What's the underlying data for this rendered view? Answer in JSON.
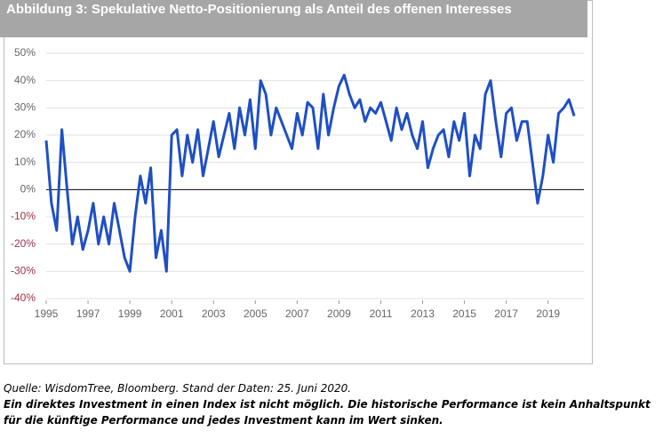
{
  "chart_data": {
    "type": "line",
    "title": "Abbildung 3: Spekulative Netto-Positionierung als Anteil des offenen Interesses",
    "x": [
      1995,
      1995.25,
      1995.5,
      1995.75,
      1996,
      1996.25,
      1996.5,
      1996.75,
      1997,
      1997.25,
      1997.5,
      1997.75,
      1998,
      1998.25,
      1998.5,
      1998.75,
      1999,
      1999.25,
      1999.5,
      1999.75,
      2000,
      2000.25,
      2000.5,
      2000.75,
      2001,
      2001.25,
      2001.5,
      2001.75,
      2002,
      2002.25,
      2002.5,
      2002.75,
      2003,
      2003.25,
      2003.5,
      2003.75,
      2004,
      2004.25,
      2004.5,
      2004.75,
      2005,
      2005.25,
      2005.5,
      2005.75,
      2006,
      2006.25,
      2006.5,
      2006.75,
      2007,
      2007.25,
      2007.5,
      2007.75,
      2008,
      2008.25,
      2008.5,
      2008.75,
      2009,
      2009.25,
      2009.5,
      2009.75,
      2010,
      2010.25,
      2010.5,
      2010.75,
      2011,
      2011.25,
      2011.5,
      2011.75,
      2012,
      2012.25,
      2012.5,
      2012.75,
      2013,
      2013.25,
      2013.5,
      2013.75,
      2014,
      2014.25,
      2014.5,
      2014.75,
      2015,
      2015.25,
      2015.5,
      2015.75,
      2016,
      2016.25,
      2016.5,
      2016.75,
      2017,
      2017.25,
      2017.5,
      2017.75,
      2018,
      2018.25,
      2018.5,
      2018.75,
      2019,
      2019.25,
      2019.5,
      2019.75,
      2020,
      2020.25
    ],
    "values": [
      18,
      -5,
      -15,
      22,
      0,
      -20,
      -10,
      -22,
      -15,
      -5,
      -20,
      -10,
      -20,
      -5,
      -15,
      -25,
      -30,
      -10,
      5,
      -5,
      8,
      -25,
      -15,
      -30,
      20,
      22,
      5,
      20,
      10,
      22,
      5,
      15,
      25,
      12,
      20,
      28,
      15,
      30,
      20,
      33,
      15,
      40,
      35,
      20,
      30,
      25,
      20,
      15,
      28,
      20,
      32,
      30,
      15,
      35,
      20,
      30,
      38,
      42,
      35,
      30,
      33,
      25,
      30,
      28,
      32,
      25,
      18,
      30,
      22,
      28,
      20,
      15,
      25,
      8,
      15,
      20,
      22,
      12,
      25,
      18,
      28,
      5,
      20,
      15,
      35,
      40,
      25,
      12,
      28,
      30,
      18,
      25,
      25,
      10,
      -5,
      5,
      20,
      10,
      28,
      30,
      33,
      27
    ],
    "color": "#1f4fc4",
    "xlim": [
      1995,
      2020.5
    ],
    "xticks": [
      1995,
      1997,
      1999,
      2001,
      2003,
      2005,
      2007,
      2009,
      2011,
      2013,
      2015,
      2017,
      2019
    ],
    "ylim": [
      -40,
      50
    ],
    "yticks": [
      {
        "value": -40,
        "label": "-40%"
      },
      {
        "value": -30,
        "label": "-30%"
      },
      {
        "value": -20,
        "label": "-20%"
      },
      {
        "value": -10,
        "label": "-10%"
      },
      {
        "value": 0,
        "label": "0%"
      },
      {
        "value": 10,
        "label": "10%"
      },
      {
        "value": 20,
        "label": "20%"
      },
      {
        "value": 30,
        "label": "30%"
      },
      {
        "value": 40,
        "label": "40%"
      },
      {
        "value": 50,
        "label": "50%"
      }
    ],
    "grid": true,
    "tick_color": "#666666",
    "negative_tick_color": "#a0304a",
    "source": "Quelle: WisdomTree, Bloomberg. Stand der Daten: 25. Juni 2020.",
    "disclaimer": "Ein direktes Investment in einen Index ist nicht möglich. Die historische Performance ist kein Anhaltspunkt für die künftige Performance und jedes Investment kann im Wert sinken."
  }
}
